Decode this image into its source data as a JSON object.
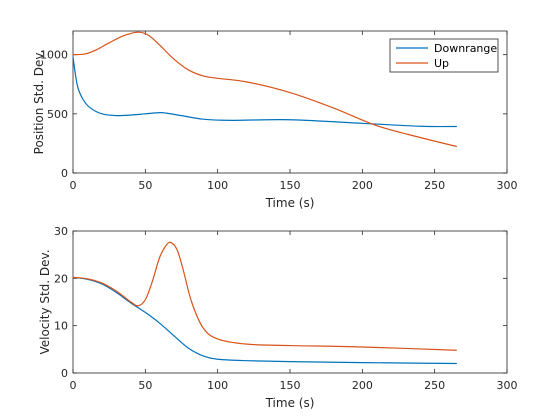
{
  "colors": {
    "downrange": "#0072BD",
    "up": "#D95319",
    "axis": "#262626",
    "background": "#ffffff"
  },
  "chart_data": [
    {
      "type": "line",
      "xlabel": "Time (s)",
      "ylabel": "Position Std. Dev.",
      "xlim": [
        0,
        300
      ],
      "ylim": [
        0,
        1200
      ],
      "xticks": [
        0,
        50,
        100,
        150,
        200,
        250,
        300
      ],
      "yticks": [
        0,
        500,
        1000
      ],
      "grid": false,
      "legend": {
        "placement": "top-right",
        "entries": [
          "Downrange",
          "Up"
        ]
      },
      "series": [
        {
          "name": "Downrange",
          "color": "#0072BD",
          "x": [
            0,
            3,
            7,
            12,
            20,
            30,
            40,
            50,
            60,
            65,
            75,
            90,
            110,
            150,
            200,
            240,
            265
          ],
          "y": [
            980,
            740,
            620,
            550,
            500,
            485,
            490,
            500,
            510,
            505,
            485,
            455,
            445,
            450,
            420,
            395,
            393
          ]
        },
        {
          "name": "Up",
          "color": "#D95319",
          "x": [
            0,
            8,
            16,
            25,
            35,
            45,
            52,
            60,
            70,
            80,
            90,
            100,
            120,
            150,
            180,
            210,
            240,
            265
          ],
          "y": [
            1000,
            1005,
            1040,
            1100,
            1160,
            1190,
            1165,
            1080,
            960,
            870,
            820,
            800,
            770,
            680,
            550,
            400,
            300,
            225
          ]
        }
      ]
    },
    {
      "type": "line",
      "xlabel": "Time (s)",
      "ylabel": "Velocity Std. Dev.",
      "xlim": [
        0,
        300
      ],
      "ylim": [
        0,
        30
      ],
      "xticks": [
        0,
        50,
        100,
        150,
        200,
        250,
        300
      ],
      "yticks": [
        0,
        10,
        20,
        30
      ],
      "grid": false,
      "series": [
        {
          "name": "Downrange",
          "color": "#0072BD",
          "x": [
            0,
            10,
            20,
            30,
            40,
            50,
            60,
            70,
            80,
            90,
            100,
            120,
            150,
            200,
            265
          ],
          "y": [
            20.2,
            19.8,
            18.8,
            17.0,
            14.8,
            12.8,
            10.5,
            7.8,
            5.2,
            3.6,
            2.9,
            2.6,
            2.4,
            2.2,
            2.0
          ]
        },
        {
          "name": "Up",
          "color": "#D95319",
          "x": [
            0,
            10,
            20,
            30,
            40,
            45,
            50,
            55,
            60,
            65,
            68,
            72,
            76,
            82,
            90,
            100,
            120,
            150,
            200,
            265
          ],
          "y": [
            20.2,
            19.9,
            19.0,
            17.3,
            15.0,
            14.2,
            15.5,
            19.5,
            24.5,
            27.2,
            27.5,
            26.0,
            22.0,
            15.0,
            9.5,
            7.2,
            6.1,
            5.8,
            5.5,
            4.8
          ]
        }
      ]
    }
  ]
}
